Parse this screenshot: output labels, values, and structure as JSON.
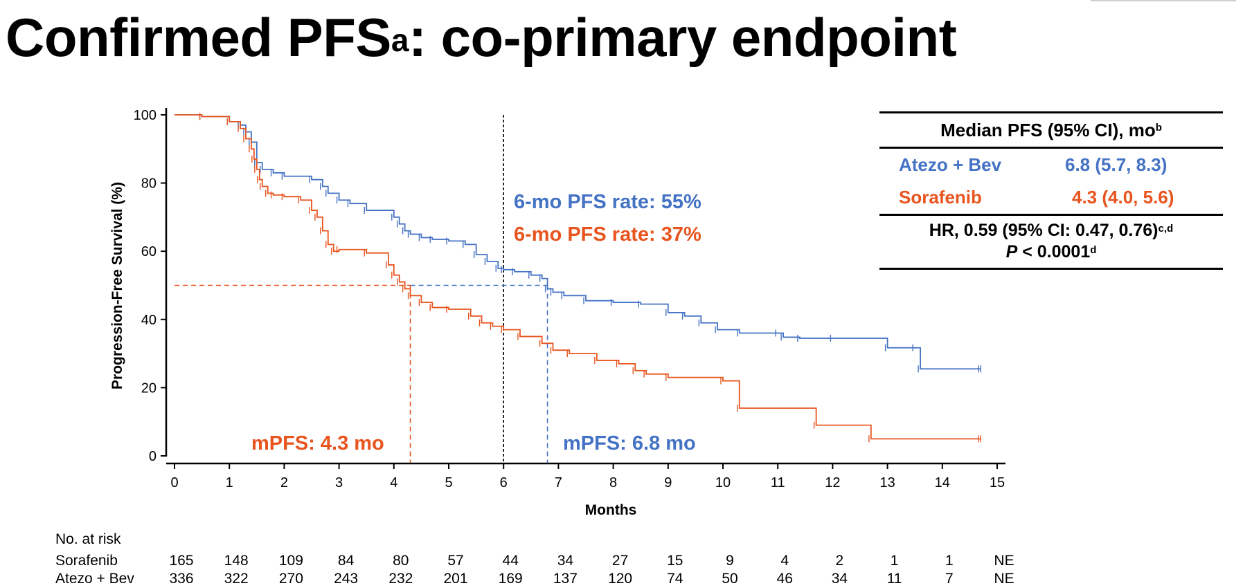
{
  "slide": {
    "title": "Confirmed PFS",
    "title_superscript": "a",
    "title_suffix": ": co-primary endpoint"
  },
  "colors": {
    "atezo": "#4472C4",
    "sorafenib": "#E8541E",
    "axis": "#000000",
    "marker_line": "#000000"
  },
  "chart_data": {
    "type": "line",
    "subtype": "kaplan-meier",
    "xlabel": "Months",
    "ylabel": "Progression-Free Survival (%)",
    "xlim": [
      0,
      15
    ],
    "ylim": [
      0,
      100
    ],
    "xticks": [
      0,
      1,
      2,
      3,
      4,
      5,
      6,
      7,
      8,
      9,
      10,
      11,
      12,
      13,
      14,
      15
    ],
    "yticks": [
      0,
      20,
      40,
      60,
      80,
      100
    ],
    "grid": false,
    "series": [
      {
        "name": "Atezo + Bev",
        "color": "#4472C4",
        "x": [
          0,
          0.5,
          1,
          1.2,
          1.3,
          1.4,
          1.5,
          1.6,
          1.8,
          2.0,
          2.5,
          2.7,
          2.8,
          3.0,
          3.2,
          3.5,
          4.0,
          4.1,
          4.2,
          4.3,
          4.5,
          4.7,
          5.0,
          5.3,
          5.5,
          5.7,
          5.9,
          6.0,
          6.2,
          6.5,
          6.7,
          6.8,
          6.9,
          7.1,
          7.5,
          8.0,
          8.5,
          9.0,
          9.3,
          9.6,
          9.9,
          10.3,
          11.0,
          11.1,
          11.4,
          12.0,
          13.0,
          13.5,
          13.6,
          14.7
        ],
        "y": [
          100,
          99.5,
          98,
          97,
          95,
          92,
          86,
          84,
          83,
          82,
          81,
          79,
          77,
          75,
          74,
          72,
          70,
          68,
          66,
          65,
          64,
          63.5,
          63,
          62,
          59,
          57,
          55,
          54.6,
          54,
          53,
          52,
          49,
          48,
          47,
          45.5,
          45,
          44.5,
          42,
          41,
          39,
          37,
          36,
          36,
          34.8,
          34.5,
          34.5,
          31.7,
          31.7,
          25.5,
          25.5
        ]
      },
      {
        "name": "Sorafenib",
        "color": "#E8541E",
        "x": [
          0,
          0.5,
          1,
          1.2,
          1.3,
          1.4,
          1.45,
          1.5,
          1.55,
          1.6,
          1.7,
          1.8,
          2.0,
          2.3,
          2.5,
          2.6,
          2.7,
          2.8,
          2.9,
          3.0,
          3.5,
          3.9,
          4.0,
          4.1,
          4.2,
          4.3,
          4.5,
          4.7,
          5.0,
          5.4,
          5.6,
          5.8,
          6.0,
          6.3,
          6.7,
          6.9,
          7.2,
          7.7,
          8.1,
          8.4,
          8.6,
          9.0,
          10.0,
          10.3,
          11.7,
          12.7,
          14.7
        ],
        "y": [
          100,
          99.5,
          98,
          96,
          93,
          90,
          87,
          84,
          81,
          79,
          77,
          76.5,
          76,
          75,
          72,
          70,
          66,
          62,
          60,
          60.5,
          59.5,
          56,
          53,
          51,
          49,
          47,
          45,
          43.5,
          43,
          41,
          39,
          38,
          37,
          35,
          33,
          31,
          30,
          28,
          27,
          25,
          24,
          23,
          22,
          14,
          9,
          5,
          5
        ]
      }
    ],
    "reference_lines": {
      "vertical_black_dashed_at": 6,
      "median_atezo": 6.8,
      "median_sorafenib": 4.3,
      "horizontal_at": 50
    },
    "annotations": [
      "6-mo PFS rate: 55%",
      "6-mo PFS rate: 37%",
      "mPFS: 4.3 mo",
      "mPFS: 6.8 mo"
    ]
  },
  "risk_table": {
    "heading": "No. at risk",
    "rows": [
      {
        "label": "Sorafenib",
        "values": [
          "165",
          "148",
          "109",
          "84",
          "80",
          "57",
          "44",
          "34",
          "27",
          "15",
          "9",
          "4",
          "2",
          "1",
          "1",
          "NE"
        ]
      },
      {
        "label": "Atezo + Bev",
        "values": [
          "336",
          "322",
          "270",
          "243",
          "232",
          "201",
          "169",
          "137",
          "120",
          "74",
          "50",
          "46",
          "34",
          "11",
          "7",
          "NE"
        ]
      }
    ]
  },
  "pfs_table": {
    "header": "Median PFS (95% CI), mo",
    "header_sup": "b",
    "rows": [
      {
        "arm": "Atezo + Bev",
        "value": "6.8 (5.7, 8.3)",
        "color": "#4472C4"
      },
      {
        "arm": "Sorafenib",
        "value": "4.3 (4.0, 5.6)",
        "color": "#E8541E"
      }
    ],
    "hr_text": "HR, 0.59 (95% CI: 0.47, 0.76)",
    "hr_sup": "c,d",
    "p_label": "P",
    "p_text": " < 0.0001",
    "p_sup": "d"
  }
}
